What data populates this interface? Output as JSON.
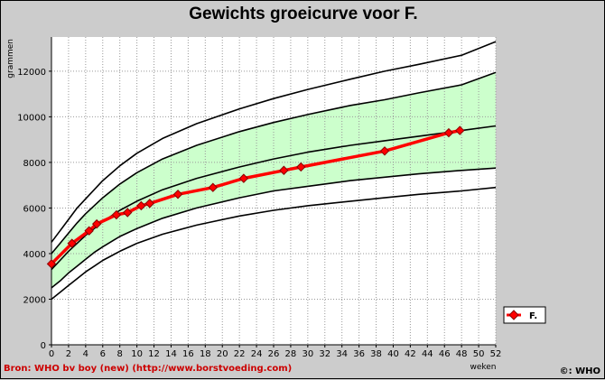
{
  "chart_data": {
    "type": "line",
    "title": "Gewichts groeicurve voor F.",
    "xlabel": "weken",
    "ylabel": "grammen",
    "xlim": [
      0,
      52
    ],
    "ylim": [
      0,
      13500
    ],
    "x_ticks": [
      0,
      2,
      4,
      6,
      8,
      10,
      12,
      14,
      16,
      18,
      20,
      22,
      24,
      26,
      28,
      30,
      32,
      34,
      36,
      38,
      40,
      42,
      44,
      46,
      48,
      50,
      52
    ],
    "y_ticks": [
      0,
      2000,
      4000,
      6000,
      8000,
      10000,
      12000
    ],
    "grid": true,
    "legend_position": "right",
    "reference_x": [
      0,
      1,
      2,
      3,
      4,
      5,
      6,
      8,
      10,
      13,
      17,
      22,
      26,
      30,
      35,
      39,
      43,
      48,
      52
    ],
    "reference_curves": [
      {
        "values": [
          2000,
          2300,
          2600,
          2900,
          3200,
          3450,
          3700,
          4100,
          4450,
          4850,
          5250,
          5650,
          5900,
          6100,
          6300,
          6450,
          6600,
          6750,
          6900
        ]
      },
      {
        "values": [
          2500,
          2800,
          3150,
          3450,
          3750,
          4050,
          4300,
          4750,
          5100,
          5550,
          6000,
          6450,
          6750,
          6950,
          7200,
          7350,
          7500,
          7650,
          7750
        ]
      },
      {
        "values": [
          3300,
          3700,
          4100,
          4450,
          4800,
          5100,
          5400,
          5900,
          6300,
          6800,
          7300,
          7800,
          8150,
          8450,
          8750,
          8950,
          9150,
          9400,
          9600
        ]
      },
      {
        "values": [
          4000,
          4450,
          4900,
          5350,
          5750,
          6100,
          6450,
          7050,
          7550,
          8150,
          8750,
          9350,
          9750,
          10100,
          10500,
          10750,
          11050,
          11400,
          11950
        ]
      },
      {
        "values": [
          4500,
          5000,
          5500,
          6000,
          6400,
          6800,
          7200,
          7850,
          8400,
          9050,
          9700,
          10350,
          10800,
          11200,
          11650,
          12000,
          12300,
          12700,
          13300
        ]
      }
    ],
    "series": [
      {
        "name": "F.",
        "x": [
          0,
          2.4,
          4.4,
          5.3,
          7.6,
          8.9,
          10.5,
          11.5,
          14.8,
          18.9,
          22.5,
          27.2,
          29.2,
          39.0,
          46.5,
          47.8
        ],
        "values": [
          3550,
          4450,
          5000,
          5300,
          5700,
          5800,
          6100,
          6200,
          6600,
          6900,
          7300,
          7650,
          7800,
          8500,
          9300,
          9400
        ]
      }
    ],
    "colors": {
      "background": "#cccccc",
      "plot_background": "#ffffff",
      "band": "#ccffcc",
      "reference_line": "#000000",
      "series_line": "#ff0000",
      "marker_fill": "#ff0000",
      "grid": "#999999"
    }
  },
  "footer": {
    "source": "Bron: WHO bv boy (new) (http://www.borstvoeding.com)",
    "copyright": "©: WHO"
  }
}
